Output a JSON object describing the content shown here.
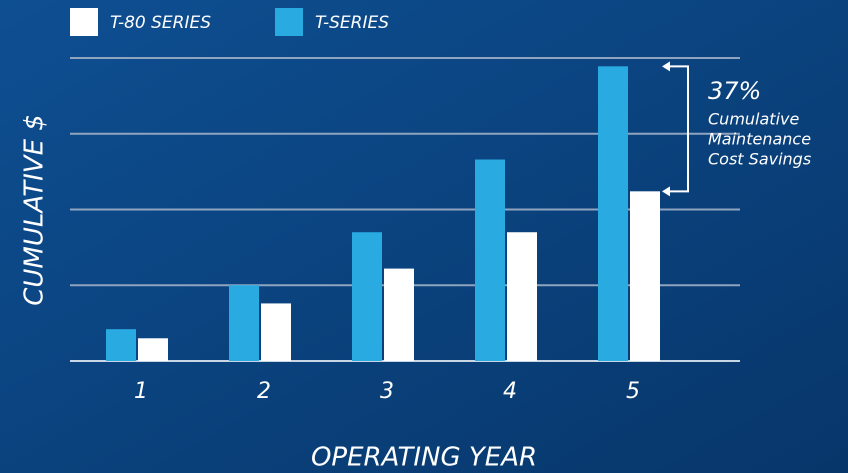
{
  "chart_data": {
    "type": "bar",
    "x_label": "OPERATING YEAR",
    "y_label": "CUMULATIVE $",
    "categories": [
      "1",
      "2",
      "3",
      "4",
      "5"
    ],
    "series": [
      {
        "name": "T-80 SERIES",
        "color": "#ffffff",
        "values": [
          0.3,
          0.76,
          1.22,
          1.7,
          2.24
        ]
      },
      {
        "name": "T-SERIES",
        "color": "#29abe2",
        "values": [
          0.42,
          1.0,
          1.7,
          2.66,
          3.89
        ]
      }
    ],
    "ylim": [
      0,
      4
    ],
    "yticks": [
      0,
      1,
      2,
      3,
      4
    ],
    "grid": true,
    "annotation": {
      "headline": "37%",
      "lines": [
        "Cumulative",
        "Maintenance",
        "Cost Savings"
      ]
    }
  }
}
